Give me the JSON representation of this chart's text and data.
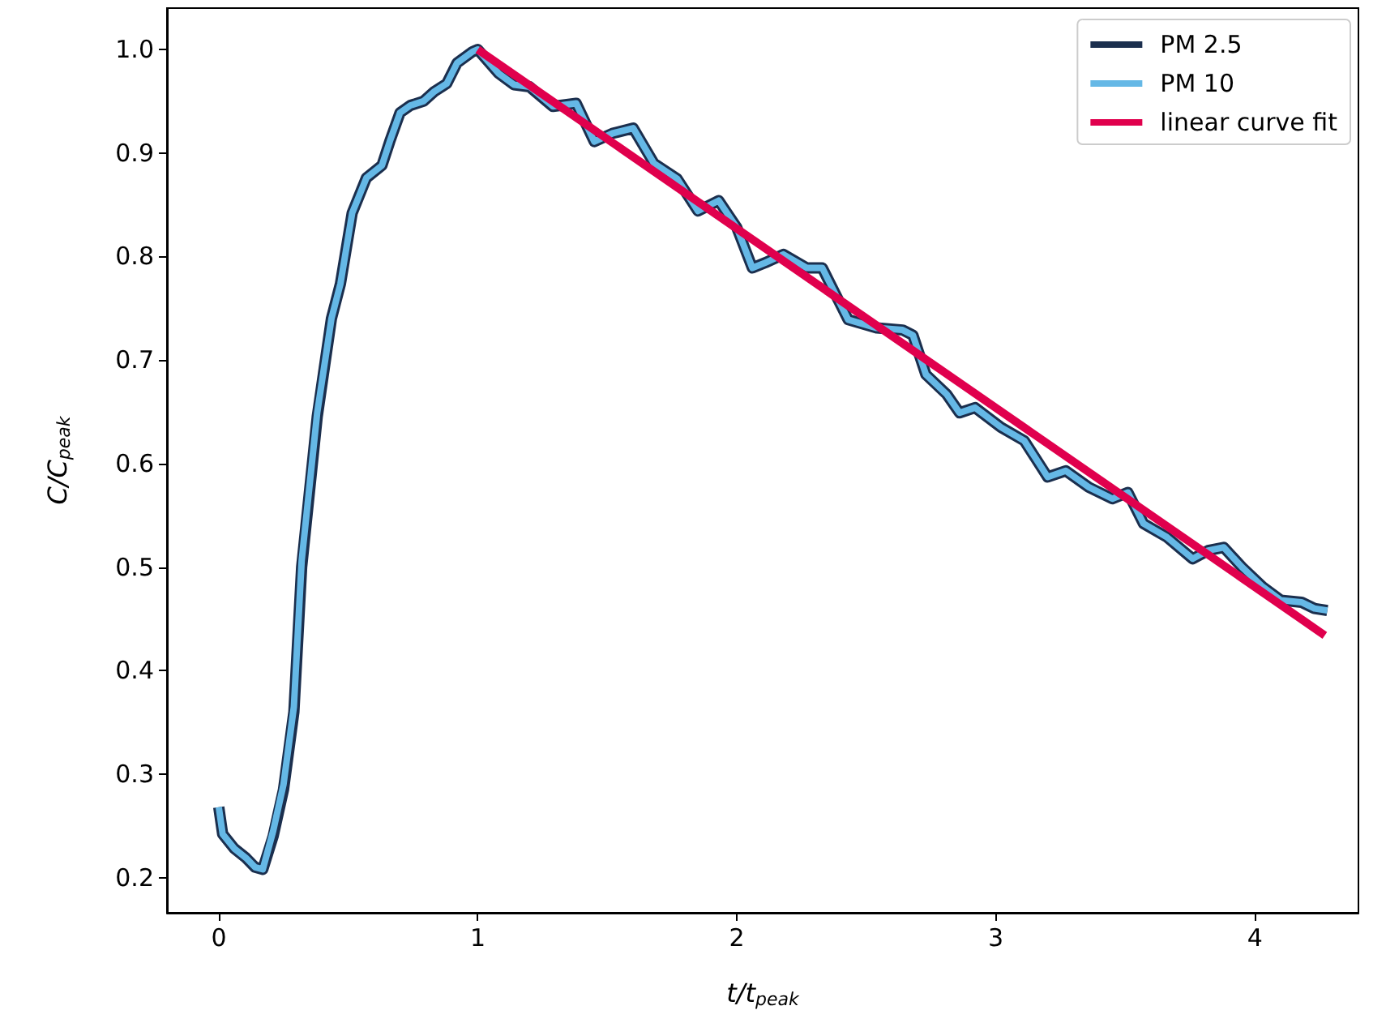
{
  "chart_data": {
    "type": "line",
    "xlabel": "t/t$_{peak}$",
    "ylabel": "C/C$_{peak}$",
    "xlim": [
      -0.2,
      4.4
    ],
    "ylim": [
      0.166,
      1.04
    ],
    "xticks": [
      0,
      1,
      2,
      3,
      4
    ],
    "yticks": [
      0.2,
      0.3,
      0.4,
      0.5,
      0.6,
      0.7,
      0.8,
      0.9,
      {
        "value": 1,
        "label": "1.0"
      }
    ],
    "grid": false,
    "legend": "top right",
    "marker": "none",
    "line_style": "solid",
    "series": [
      {
        "name": "PM 2.5",
        "color": "#1b2f4e",
        "x": [
          0,
          0.015,
          0.06,
          0.105,
          0.14,
          0.17,
          0.21,
          0.25,
          0.29,
          0.32,
          0.38,
          0.435,
          0.47,
          0.515,
          0.57,
          0.63,
          0.66,
          0.7,
          0.74,
          0.79,
          0.83,
          0.88,
          0.92,
          0.98,
          1.0,
          1.08,
          1.14,
          1.2,
          1.29,
          1.38,
          1.45,
          1.52,
          1.6,
          1.68,
          1.77,
          1.85,
          1.93,
          2.0,
          2.06,
          2.11,
          2.18,
          2.27,
          2.33,
          2.43,
          2.54,
          2.64,
          2.68,
          2.73,
          2.81,
          2.86,
          2.92,
          3.02,
          3.11,
          3.2,
          3.27,
          3.36,
          3.45,
          3.51,
          3.57,
          3.66,
          3.76,
          3.82,
          3.88,
          3.95,
          4.03,
          4.1,
          4.18,
          4.23,
          4.28
        ],
        "values": [
          0.268,
          0.242,
          0.228,
          0.219,
          0.21,
          0.208,
          0.24,
          0.285,
          0.36,
          0.5,
          0.645,
          0.74,
          0.774,
          0.842,
          0.876,
          0.888,
          0.911,
          0.939,
          0.946,
          0.95,
          0.959,
          0.967,
          0.987,
          0.998,
          1.0,
          0.977,
          0.966,
          0.964,
          0.945,
          0.948,
          0.911,
          0.919,
          0.924,
          0.89,
          0.875,
          0.844,
          0.854,
          0.828,
          0.789,
          0.794,
          0.802,
          0.789,
          0.789,
          0.739,
          0.731,
          0.729,
          0.724,
          0.686,
          0.667,
          0.649,
          0.654,
          0.635,
          0.622,
          0.587,
          0.593,
          0.577,
          0.566,
          0.572,
          0.542,
          0.529,
          0.508,
          0.516,
          0.519,
          0.5,
          0.481,
          0.468,
          0.466,
          0.46,
          0.458
        ]
      },
      {
        "name": "PM 10",
        "color": "#65b8e6",
        "x": [
          0,
          0.015,
          0.06,
          0.105,
          0.14,
          0.17,
          0.21,
          0.25,
          0.29,
          0.32,
          0.38,
          0.435,
          0.47,
          0.515,
          0.57,
          0.63,
          0.66,
          0.7,
          0.74,
          0.79,
          0.83,
          0.88,
          0.92,
          0.98,
          1.0,
          1.08,
          1.14,
          1.2,
          1.29,
          1.38,
          1.45,
          1.52,
          1.6,
          1.68,
          1.77,
          1.85,
          1.93,
          2.0,
          2.06,
          2.11,
          2.18,
          2.27,
          2.33,
          2.43,
          2.54,
          2.64,
          2.68,
          2.73,
          2.81,
          2.86,
          2.92,
          3.02,
          3.11,
          3.2,
          3.27,
          3.36,
          3.45,
          3.51,
          3.57,
          3.66,
          3.76,
          3.82,
          3.88,
          3.95,
          4.03,
          4.1,
          4.18,
          4.23,
          4.28
        ],
        "values": [
          0.268,
          0.242,
          0.228,
          0.219,
          0.21,
          0.208,
          0.245,
          0.29,
          0.365,
          0.506,
          0.649,
          0.74,
          0.774,
          0.842,
          0.876,
          0.888,
          0.911,
          0.939,
          0.946,
          0.95,
          0.959,
          0.967,
          0.987,
          0.998,
          1.0,
          0.977,
          0.966,
          0.964,
          0.945,
          0.948,
          0.911,
          0.919,
          0.924,
          0.89,
          0.875,
          0.844,
          0.854,
          0.828,
          0.789,
          0.794,
          0.802,
          0.789,
          0.789,
          0.739,
          0.731,
          0.729,
          0.724,
          0.686,
          0.667,
          0.649,
          0.654,
          0.635,
          0.622,
          0.587,
          0.593,
          0.577,
          0.566,
          0.572,
          0.542,
          0.529,
          0.508,
          0.516,
          0.519,
          0.5,
          0.481,
          0.468,
          0.466,
          0.46,
          0.458
        ]
      },
      {
        "name": "linear curve fit",
        "color": "#e0004d",
        "x": [
          1.0,
          4.27
        ],
        "values": [
          1.0,
          0.434
        ]
      }
    ]
  }
}
